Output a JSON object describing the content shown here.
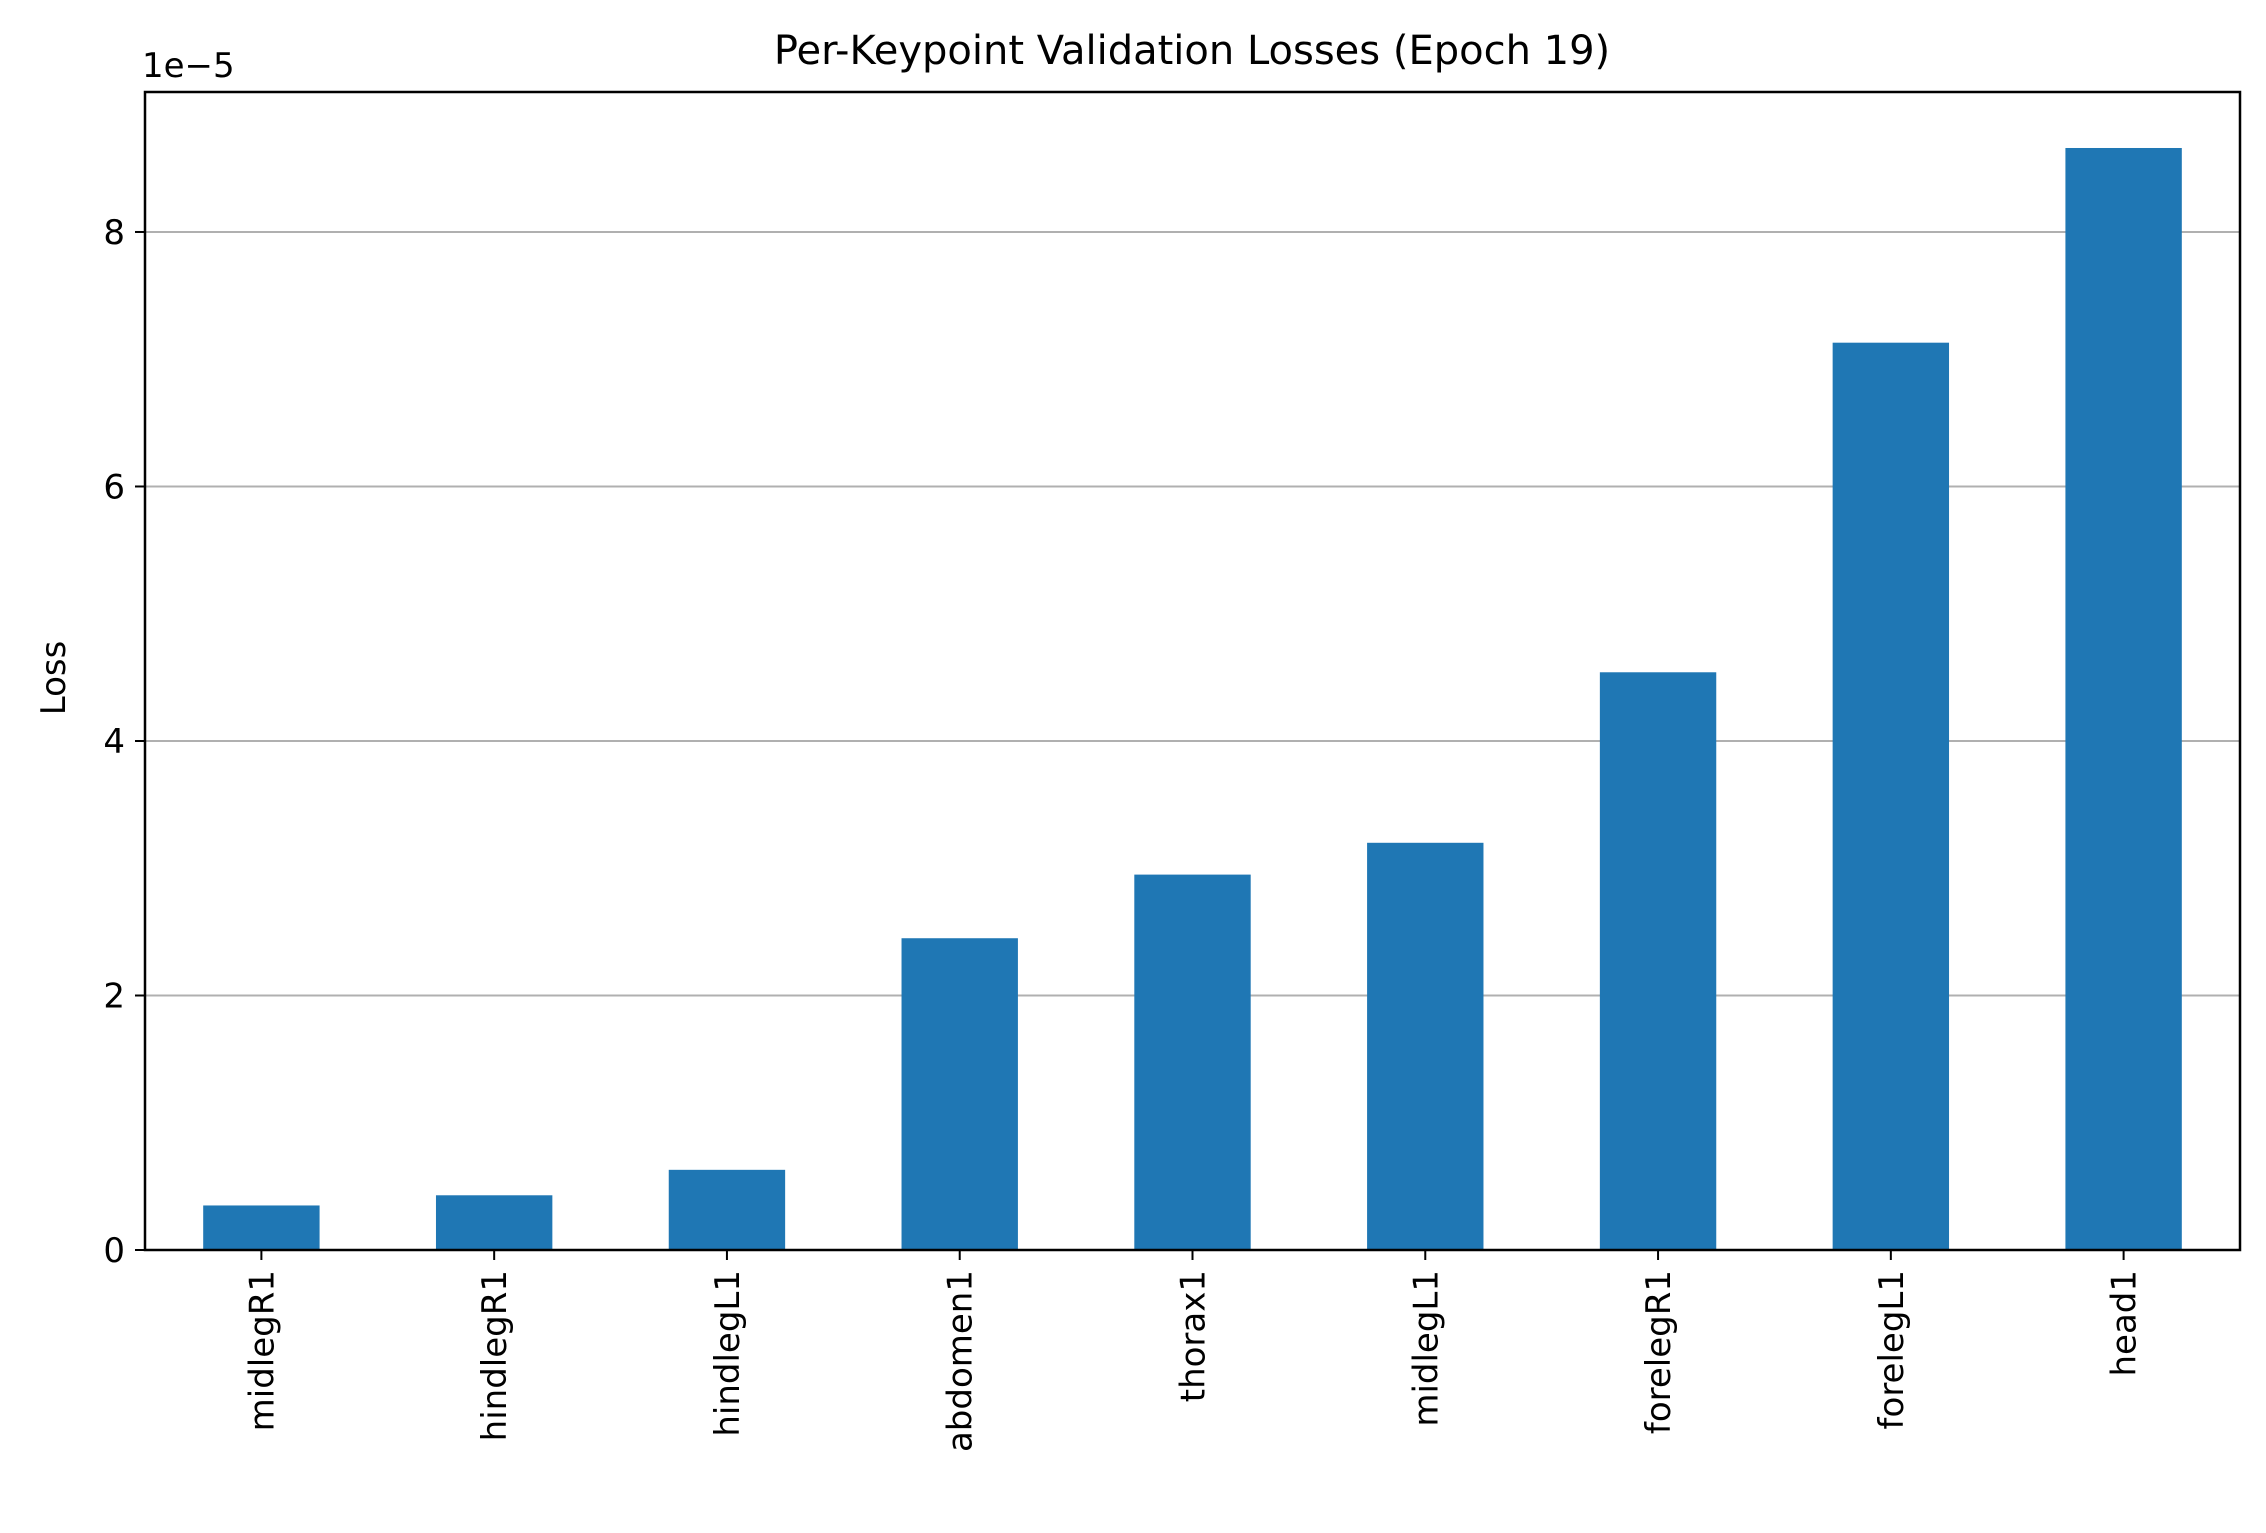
{
  "chart_data": {
    "type": "bar",
    "title": "Per-Keypoint Validation Losses (Epoch 19)",
    "xlabel": "",
    "ylabel": "Loss",
    "y_offset_label": "1e−5",
    "y_scale_factor": 1e-05,
    "categories": [
      "midlegR1",
      "hindlegR1",
      "hindlegL1",
      "abdomen1",
      "thorax1",
      "midlegL1",
      "forelegR1",
      "forelegL1",
      "head1"
    ],
    "values": [
      3.5e-06,
      4.3e-06,
      6.3e-06,
      2.45e-05,
      2.95e-05,
      3.2e-05,
      4.54e-05,
      7.13e-05,
      8.66e-05
    ],
    "ylim": [
      0,
      9.1e-05
    ],
    "yticks": [
      0,
      2,
      4,
      6,
      8
    ],
    "ytick_labels": [
      "0",
      "2",
      "4",
      "6",
      "8"
    ],
    "grid": "y",
    "legend": "none",
    "colors": {
      "bar": "#1f77b4",
      "grid": "#b0b0b0",
      "axis": "#000000"
    }
  }
}
